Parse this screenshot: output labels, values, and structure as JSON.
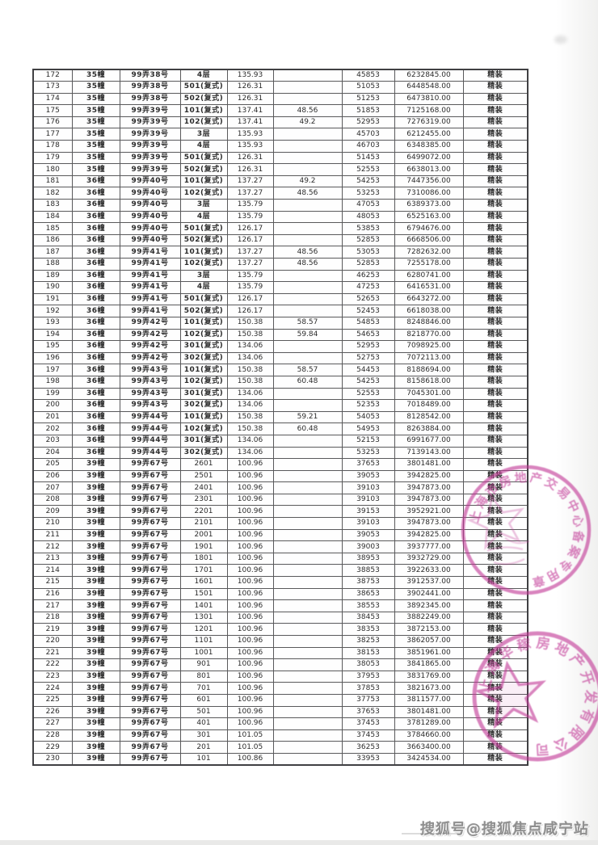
{
  "page": {
    "watermark": "搜狐号@搜狐焦点咸宁站"
  },
  "table": {
    "field_order": [
      "no",
      "building",
      "lane",
      "unit",
      "area",
      "extra_area",
      "unit_price",
      "total_price",
      "decoration"
    ],
    "rows": [
      [
        "172",
        "35幢",
        "99弄38号",
        "4层",
        "135.93",
        "",
        "45853",
        "6232845.00",
        "精装"
      ],
      [
        "173",
        "35幢",
        "99弄38号",
        "501(复式)",
        "126.31",
        "",
        "51053",
        "6448548.00",
        "精装"
      ],
      [
        "174",
        "35幢",
        "99弄38号",
        "502(复式)",
        "126.31",
        "",
        "51253",
        "6473810.00",
        "精装"
      ],
      [
        "175",
        "35幢",
        "99弄39号",
        "101(复式)",
        "137.41",
        "48.56",
        "51853",
        "7125168.00",
        "精装"
      ],
      [
        "176",
        "35幢",
        "99弄39号",
        "102(复式)",
        "137.41",
        "49.2",
        "52953",
        "7276319.00",
        "精装"
      ],
      [
        "177",
        "35幢",
        "99弄39号",
        "3层",
        "135.93",
        "",
        "45703",
        "6212455.00",
        "精装"
      ],
      [
        "178",
        "35幢",
        "99弄39号",
        "4层",
        "135.93",
        "",
        "46703",
        "6348385.00",
        "精装"
      ],
      [
        "179",
        "35幢",
        "99弄39号",
        "501(复式)",
        "126.31",
        "",
        "51453",
        "6499072.00",
        "精装"
      ],
      [
        "180",
        "35幢",
        "99弄39号",
        "502(复式)",
        "126.31",
        "",
        "52553",
        "6638013.00",
        "精装"
      ],
      [
        "181",
        "36幢",
        "99弄40号",
        "101(复式)",
        "137.27",
        "49.2",
        "54253",
        "7447356.00",
        "精装"
      ],
      [
        "182",
        "36幢",
        "99弄40号",
        "102(复式)",
        "137.27",
        "48.56",
        "53253",
        "7310086.00",
        "精装"
      ],
      [
        "183",
        "36幢",
        "99弄40号",
        "3层",
        "135.79",
        "",
        "47053",
        "6389373.00",
        "精装"
      ],
      [
        "184",
        "36幢",
        "99弄40号",
        "4层",
        "135.79",
        "",
        "48053",
        "6525163.00",
        "精装"
      ],
      [
        "185",
        "36幢",
        "99弄40号",
        "501(复式)",
        "126.17",
        "",
        "53853",
        "6794676.00",
        "精装"
      ],
      [
        "186",
        "36幢",
        "99弄40号",
        "502(复式)",
        "126.17",
        "",
        "52853",
        "6668506.00",
        "精装"
      ],
      [
        "187",
        "36幢",
        "99弄41号",
        "101(复式)",
        "137.27",
        "48.56",
        "53053",
        "7282632.00",
        "精装"
      ],
      [
        "188",
        "36幢",
        "99弄41号",
        "102(复式)",
        "137.27",
        "48.56",
        "52853",
        "7255178.00",
        "精装"
      ],
      [
        "189",
        "36幢",
        "99弄41号",
        "3层",
        "135.79",
        "",
        "46253",
        "6280741.00",
        "精装"
      ],
      [
        "190",
        "36幢",
        "99弄41号",
        "4层",
        "135.79",
        "",
        "47253",
        "6416531.00",
        "精装"
      ],
      [
        "191",
        "36幢",
        "99弄41号",
        "501(复式)",
        "126.17",
        "",
        "52653",
        "6643272.00",
        "精装"
      ],
      [
        "192",
        "36幢",
        "99弄41号",
        "502(复式)",
        "126.17",
        "",
        "52453",
        "6618038.00",
        "精装"
      ],
      [
        "193",
        "36幢",
        "99弄42号",
        "101(复式)",
        "150.38",
        "58.57",
        "54853",
        "8248846.00",
        "精装"
      ],
      [
        "194",
        "36幢",
        "99弄42号",
        "102(复式)",
        "150.38",
        "59.84",
        "54653",
        "8218770.00",
        "精装"
      ],
      [
        "195",
        "36幢",
        "99弄42号",
        "301(复式)",
        "134.06",
        "",
        "52953",
        "7098925.00",
        "精装"
      ],
      [
        "196",
        "36幢",
        "99弄42号",
        "302(复式)",
        "134.06",
        "",
        "52753",
        "7072113.00",
        "精装"
      ],
      [
        "197",
        "36幢",
        "99弄43号",
        "101(复式)",
        "150.38",
        "58.57",
        "54453",
        "8188694.00",
        "精装"
      ],
      [
        "198",
        "36幢",
        "99弄43号",
        "102(复式)",
        "150.38",
        "60.48",
        "54253",
        "8158618.00",
        "精装"
      ],
      [
        "199",
        "36幢",
        "99弄43号",
        "301(复式)",
        "134.06",
        "",
        "52553",
        "7045301.00",
        "精装"
      ],
      [
        "200",
        "36幢",
        "99弄43号",
        "302(复式)",
        "134.06",
        "",
        "52353",
        "7018489.00",
        "精装"
      ],
      [
        "201",
        "36幢",
        "99弄44号",
        "101(复式)",
        "150.38",
        "59.21",
        "54053",
        "8128542.00",
        "精装"
      ],
      [
        "202",
        "36幢",
        "99弄44号",
        "102(复式)",
        "150.38",
        "60.48",
        "54953",
        "8263884.00",
        "精装"
      ],
      [
        "203",
        "36幢",
        "99弄44号",
        "301(复式)",
        "134.06",
        "",
        "52153",
        "6991677.00",
        "精装"
      ],
      [
        "204",
        "36幢",
        "99弄44号",
        "302(复式)",
        "134.06",
        "",
        "53253",
        "7139143.00",
        "精装"
      ],
      [
        "205",
        "39幢",
        "99弄67号",
        "2601",
        "100.96",
        "",
        "37653",
        "3801481.00",
        "精装"
      ],
      [
        "206",
        "39幢",
        "99弄67号",
        "2501",
        "100.96",
        "",
        "39053",
        "3942825.00",
        "精装"
      ],
      [
        "207",
        "39幢",
        "99弄67号",
        "2401",
        "100.96",
        "",
        "39103",
        "3947873.00",
        "精装"
      ],
      [
        "208",
        "39幢",
        "99弄67号",
        "2301",
        "100.96",
        "",
        "39103",
        "3947873.00",
        "精装"
      ],
      [
        "209",
        "39幢",
        "99弄67号",
        "2201",
        "100.96",
        "",
        "39153",
        "3952921.00",
        "精装"
      ],
      [
        "210",
        "39幢",
        "99弄67号",
        "2101",
        "100.96",
        "",
        "39103",
        "3947873.00",
        "精装"
      ],
      [
        "211",
        "39幢",
        "99弄67号",
        "2001",
        "100.96",
        "",
        "39053",
        "3942825.00",
        "精装"
      ],
      [
        "212",
        "39幢",
        "99弄67号",
        "1901",
        "100.96",
        "",
        "39003",
        "3937777.00",
        "精装"
      ],
      [
        "213",
        "39幢",
        "99弄67号",
        "1801",
        "100.96",
        "",
        "38953",
        "3932729.00",
        "精装"
      ],
      [
        "214",
        "39幢",
        "99弄67号",
        "1701",
        "100.96",
        "",
        "38853",
        "3922633.00",
        "精装"
      ],
      [
        "215",
        "39幢",
        "99弄67号",
        "1601",
        "100.96",
        "",
        "38753",
        "3912537.00",
        "精装"
      ],
      [
        "216",
        "39幢",
        "99弄67号",
        "1501",
        "100.96",
        "",
        "38653",
        "3902441.00",
        "精装"
      ],
      [
        "217",
        "39幢",
        "99弄67号",
        "1401",
        "100.96",
        "",
        "38553",
        "3892345.00",
        "精装"
      ],
      [
        "218",
        "39幢",
        "99弄67号",
        "1301",
        "100.96",
        "",
        "38453",
        "3882249.00",
        "精装"
      ],
      [
        "219",
        "39幢",
        "99弄67号",
        "1201",
        "100.96",
        "",
        "38353",
        "3872153.00",
        "精装"
      ],
      [
        "220",
        "39幢",
        "99弄67号",
        "1101",
        "100.96",
        "",
        "38253",
        "3862057.00",
        "精装"
      ],
      [
        "221",
        "39幢",
        "99弄67号",
        "1001",
        "100.96",
        "",
        "38153",
        "3851961.00",
        "精装"
      ],
      [
        "222",
        "39幢",
        "99弄67号",
        "901",
        "100.96",
        "",
        "38053",
        "3841865.00",
        "精装"
      ],
      [
        "223",
        "39幢",
        "99弄67号",
        "801",
        "100.96",
        "",
        "37953",
        "3831769.00",
        "精装"
      ],
      [
        "224",
        "39幢",
        "99弄67号",
        "701",
        "100.96",
        "",
        "37853",
        "3821673.00",
        "精装"
      ],
      [
        "225",
        "39幢",
        "99弄67号",
        "601",
        "100.96",
        "",
        "37753",
        "3811577.00",
        "精装"
      ],
      [
        "226",
        "39幢",
        "99弄67号",
        "501",
        "100.96",
        "",
        "37653",
        "3801481.00",
        "精装"
      ],
      [
        "227",
        "39幢",
        "99弄67号",
        "401",
        "100.96",
        "",
        "37453",
        "3781289.00",
        "精装"
      ],
      [
        "228",
        "39幢",
        "99弄67号",
        "301",
        "101.05",
        "",
        "37453",
        "3784660.00",
        "精装"
      ],
      [
        "229",
        "39幢",
        "99弄67号",
        "201",
        "101.05",
        "",
        "36253",
        "3663400.00",
        "精装"
      ],
      [
        "230",
        "39幢",
        "99弄67号",
        "101",
        "100.86",
        "",
        "33953",
        "3424534.00",
        "精装"
      ]
    ]
  },
  "stamps": {
    "color": "#c23a97",
    "upper": {
      "ring_text": "上海市房地产交易中心备案专用章"
    },
    "lower": {
      "ring_text": "上海华稼房地产开发有限公司"
    }
  }
}
